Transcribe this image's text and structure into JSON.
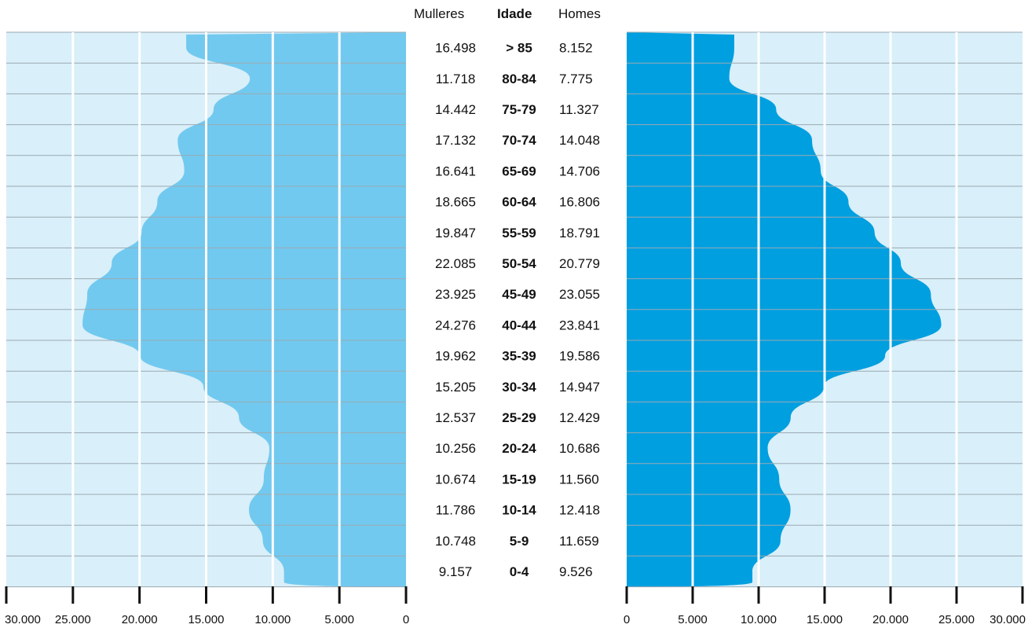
{
  "header": {
    "left_label": "Mulleres",
    "center_label": "Idade",
    "right_label": "Homes"
  },
  "colors": {
    "panel_background": "#d9eff9",
    "women_fill": "#72c9ef",
    "men_fill": "#009fe0",
    "row_line": "#9aaab2",
    "grid_line": "#ffffff"
  },
  "chart_data": {
    "type": "population-pyramid",
    "categories": [
      ">  85",
      "80-84",
      "75-79",
      "70-74",
      "65-69",
      "60-64",
      "55-59",
      "50-54",
      "45-49",
      "40-44",
      "35-39",
      "30-34",
      "25-29",
      "20-24",
      "15-19",
      "10-14",
      "5-9",
      "0-4"
    ],
    "series": [
      {
        "name": "Mulleres",
        "values": [
          16498,
          11718,
          14442,
          17132,
          16641,
          18665,
          19847,
          22085,
          23925,
          24276,
          19962,
          15205,
          12537,
          10256,
          10674,
          11786,
          10748,
          9157
        ],
        "labels": [
          "16.498",
          "11.718",
          "14.442",
          "17.132",
          "16.641",
          "18.665",
          "19.847",
          "22.085",
          "23.925",
          "24.276",
          "19.962",
          "15.205",
          "12.537",
          "10.256",
          "10.674",
          "11.786",
          "10.748",
          "9.157"
        ]
      },
      {
        "name": "Homes",
        "values": [
          8152,
          7775,
          11327,
          14048,
          14706,
          16806,
          18791,
          20779,
          23055,
          23841,
          19586,
          14947,
          12429,
          10686,
          11560,
          12418,
          11659,
          9526
        ],
        "labels": [
          "8.152",
          "7.775",
          "11.327",
          "14.048",
          "14.706",
          "16.806",
          "18.791",
          "20.779",
          "23.055",
          "23.841",
          "19.586",
          "14.947",
          "12.429",
          "10.686",
          "11.560",
          "12.418",
          "11.659",
          "9.526"
        ]
      }
    ],
    "xlim": [
      0,
      30000
    ],
    "ticks": [
      0,
      5000,
      10000,
      15000,
      20000,
      25000,
      30000
    ],
    "tick_labels": [
      "0",
      "5.000",
      "10.000",
      "15.000",
      "20.000",
      "25.000",
      "30.000"
    ]
  }
}
